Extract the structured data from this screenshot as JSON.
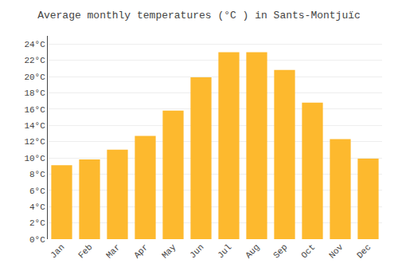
{
  "chart_data": {
    "type": "bar",
    "title": "Average monthly temperatures (°C ) in Sants-Montjuïc",
    "categories": [
      "Jan",
      "Feb",
      "Mar",
      "Apr",
      "May",
      "Jun",
      "Jul",
      "Aug",
      "Sep",
      "Oct",
      "Nov",
      "Dec"
    ],
    "values": [
      9.1,
      9.8,
      11.0,
      12.7,
      15.8,
      19.9,
      23.0,
      23.0,
      20.8,
      16.8,
      12.3,
      9.9
    ],
    "color": "#FDB92E",
    "ylim": [
      0,
      25
    ],
    "yticks": [
      {
        "value": 0,
        "label": "0°C"
      },
      {
        "value": 2,
        "label": "2°C"
      },
      {
        "value": 4,
        "label": "4°C"
      },
      {
        "value": 6,
        "label": "6°C"
      },
      {
        "value": 8,
        "label": "8°C"
      },
      {
        "value": 10,
        "label": "10°C"
      },
      {
        "value": 12,
        "label": "12°C"
      },
      {
        "value": 14,
        "label": "14°C"
      },
      {
        "value": 16,
        "label": "16°C"
      },
      {
        "value": 18,
        "label": "18°C"
      },
      {
        "value": 20,
        "label": "20°C"
      },
      {
        "value": 22,
        "label": "22°C"
      },
      {
        "value": 24,
        "label": "24°C"
      }
    ],
    "grid": true
  }
}
